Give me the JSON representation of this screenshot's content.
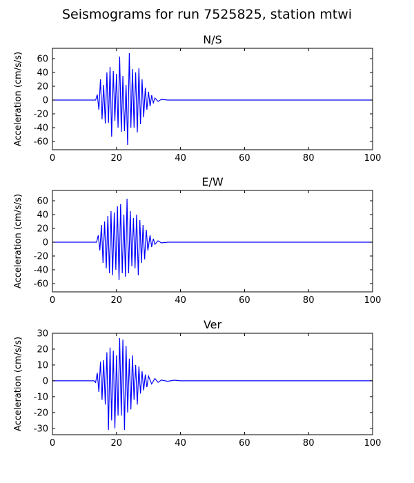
{
  "figure": {
    "title": "Seismograms for run 7525825, station mtwi"
  },
  "chart_data": [
    {
      "type": "line",
      "title": "N/S",
      "xlabel": "",
      "ylabel": "Acceleration (cm/s/s)",
      "xlim": [
        0,
        100
      ],
      "ylim": [
        -72,
        75
      ],
      "xticks": [
        0,
        20,
        40,
        60,
        80,
        100
      ],
      "yticks": [
        -60,
        -40,
        -20,
        0,
        20,
        40,
        60
      ],
      "grid": false,
      "color": "#0000ff",
      "series": [
        {
          "x": [
            0,
            13.5,
            14.0,
            14.5,
            15.0,
            15.5,
            16.0,
            16.5,
            17.0,
            17.5,
            18.0,
            18.5,
            19.0,
            19.5,
            20.0,
            20.5,
            21.0,
            21.5,
            22.0,
            22.5,
            23.0,
            23.5,
            24.0,
            24.5,
            25.0,
            25.5,
            26.0,
            26.5,
            27.0,
            27.5,
            28.0,
            28.5,
            29.0,
            29.5,
            30.0,
            30.5,
            31.0,
            31.5,
            32.0,
            33.0,
            34.0,
            36.0,
            100
          ],
          "y": [
            0,
            0,
            8,
            -14,
            30,
            -28,
            22,
            -34,
            40,
            -33,
            48,
            -53,
            42,
            -30,
            38,
            -40,
            63,
            -46,
            35,
            -45,
            22,
            -65,
            68,
            -40,
            45,
            -40,
            40,
            -47,
            46,
            -35,
            30,
            -25,
            18,
            -14,
            12,
            -9,
            7,
            -4,
            3,
            -2,
            1,
            0,
            0
          ]
        }
      ]
    },
    {
      "type": "line",
      "title": "E/W",
      "xlabel": "",
      "ylabel": "Acceleration (cm/s/s)",
      "xlim": [
        0,
        100
      ],
      "ylim": [
        -72,
        75
      ],
      "xticks": [
        0,
        20,
        40,
        60,
        80,
        100
      ],
      "yticks": [
        -60,
        -40,
        -20,
        0,
        20,
        40,
        60
      ],
      "grid": false,
      "color": "#0000ff",
      "series": [
        {
          "x": [
            0,
            13.8,
            14.3,
            14.8,
            15.3,
            15.8,
            16.3,
            16.8,
            17.3,
            17.8,
            18.3,
            18.8,
            19.3,
            19.8,
            20.3,
            20.8,
            21.3,
            21.8,
            22.3,
            22.8,
            23.3,
            23.8,
            24.3,
            24.8,
            25.3,
            25.8,
            26.3,
            26.8,
            27.3,
            27.8,
            28.3,
            28.8,
            29.3,
            29.8,
            30.5,
            31.0,
            31.5,
            32.0,
            33.0,
            34.0,
            36.0,
            100
          ],
          "y": [
            0,
            0,
            10,
            -12,
            25,
            -30,
            30,
            -38,
            38,
            -45,
            45,
            -48,
            43,
            -40,
            52,
            -55,
            55,
            -45,
            40,
            -50,
            63,
            -45,
            45,
            -35,
            35,
            -38,
            40,
            -48,
            32,
            -30,
            25,
            -25,
            18,
            -12,
            10,
            -7,
            5,
            -3,
            2,
            -1,
            0,
            0
          ]
        }
      ]
    },
    {
      "type": "line",
      "title": "Ver",
      "xlabel": "",
      "ylabel": "Acceleration (cm/s/s)",
      "xlim": [
        0,
        100
      ],
      "ylim": [
        -34,
        30
      ],
      "xticks": [
        0,
        20,
        40,
        60,
        80,
        100
      ],
      "yticks": [
        -30,
        -20,
        -10,
        0,
        10,
        20,
        30
      ],
      "grid": false,
      "color": "#0000ff",
      "series": [
        {
          "x": [
            0,
            13.0,
            13.5,
            14.0,
            14.5,
            15.0,
            15.5,
            16.0,
            16.5,
            17.0,
            17.5,
            18.0,
            18.5,
            19.0,
            19.5,
            20.0,
            20.5,
            21.0,
            21.5,
            22.0,
            22.5,
            23.0,
            23.5,
            24.0,
            24.5,
            25.0,
            25.5,
            26.0,
            26.5,
            27.0,
            27.5,
            28.0,
            28.5,
            29.0,
            29.5,
            30.0,
            31.0,
            32.0,
            33.0,
            34.0,
            36.0,
            38.0,
            40.0,
            100
          ],
          "y": [
            0,
            0,
            -1,
            5,
            -7,
            12,
            -12,
            13,
            -15,
            18,
            -31,
            21,
            -25,
            19,
            -30,
            16,
            -22,
            27,
            -22,
            26,
            -31,
            22,
            -20,
            14,
            -18,
            16,
            -12,
            10,
            -15,
            9,
            -8,
            6,
            -6,
            4,
            -4,
            3,
            -2,
            1.5,
            -1,
            0.5,
            -0.3,
            0.4,
            0,
            0
          ]
        }
      ]
    }
  ]
}
